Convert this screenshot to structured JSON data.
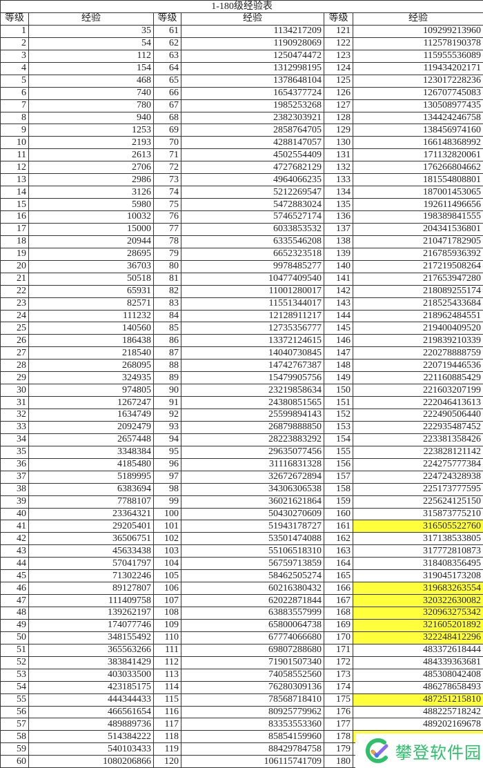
{
  "title": "1-180级经验表",
  "headers": {
    "level": "等级",
    "exp": "经验"
  },
  "highlight_color": "#ffff3c",
  "rows": [
    [
      [
        "1",
        "35"
      ],
      [
        "61",
        "1134217209"
      ],
      [
        "121",
        "109299213960"
      ]
    ],
    [
      [
        "2",
        "54"
      ],
      [
        "62",
        "1190928069"
      ],
      [
        "122",
        "112578190378"
      ]
    ],
    [
      [
        "3",
        "112"
      ],
      [
        "63",
        "1250474472"
      ],
      [
        "123",
        "115955536089"
      ]
    ],
    [
      [
        "4",
        "154"
      ],
      [
        "64",
        "1312998195"
      ],
      [
        "124",
        "119434202171"
      ]
    ],
    [
      [
        "5",
        "468"
      ],
      [
        "65",
        "1378648104"
      ],
      [
        "125",
        "123017228236"
      ]
    ],
    [
      [
        "6",
        "740"
      ],
      [
        "66",
        "1654377724"
      ],
      [
        "126",
        "126707745083"
      ]
    ],
    [
      [
        "7",
        "780"
      ],
      [
        "67",
        "1985253268"
      ],
      [
        "127",
        "130508977435"
      ]
    ],
    [
      [
        "8",
        "940"
      ],
      [
        "68",
        "2382303921"
      ],
      [
        "128",
        "134424246758"
      ]
    ],
    [
      [
        "9",
        "1253"
      ],
      [
        "69",
        "2858764705"
      ],
      [
        "129",
        "138456974160"
      ]
    ],
    [
      [
        "10",
        "2193"
      ],
      [
        "70",
        "4288147057"
      ],
      [
        "130",
        "166148368992"
      ]
    ],
    [
      [
        "11",
        "2613"
      ],
      [
        "71",
        "4502554409"
      ],
      [
        "131",
        "171132820061"
      ]
    ],
    [
      [
        "12",
        "2706"
      ],
      [
        "72",
        "4727682129"
      ],
      [
        "132",
        "176266804662"
      ]
    ],
    [
      [
        "13",
        "2986"
      ],
      [
        "73",
        "4964066235"
      ],
      [
        "133",
        "181554808801"
      ]
    ],
    [
      [
        "14",
        "3126"
      ],
      [
        "74",
        "5212269547"
      ],
      [
        "134",
        "187001453065"
      ]
    ],
    [
      [
        "15",
        "5980"
      ],
      [
        "75",
        "5472883024"
      ],
      [
        "135",
        "192611496656"
      ]
    ],
    [
      [
        "16",
        "10032"
      ],
      [
        "76",
        "5746527174"
      ],
      [
        "136",
        "198389841555"
      ]
    ],
    [
      [
        "17",
        "15000"
      ],
      [
        "77",
        "6033853532"
      ],
      [
        "137",
        "204341536801"
      ]
    ],
    [
      [
        "18",
        "20944"
      ],
      [
        "78",
        "6335546208"
      ],
      [
        "138",
        "210471782905"
      ]
    ],
    [
      [
        "19",
        "28695"
      ],
      [
        "79",
        "6652323518"
      ],
      [
        "139",
        "216785936392"
      ]
    ],
    [
      [
        "20",
        "36703"
      ],
      [
        "80",
        "9978485277"
      ],
      [
        "140",
        "217219508264"
      ]
    ],
    [
      [
        "21",
        "50518"
      ],
      [
        "81",
        "10477409540"
      ],
      [
        "141",
        "217653947280"
      ]
    ],
    [
      [
        "22",
        "65931"
      ],
      [
        "82",
        "11001280017"
      ],
      [
        "142",
        "218089255174"
      ]
    ],
    [
      [
        "23",
        "82571"
      ],
      [
        "83",
        "11551344017"
      ],
      [
        "143",
        "218525433684"
      ]
    ],
    [
      [
        "24",
        "111232"
      ],
      [
        "84",
        "12128911217"
      ],
      [
        "144",
        "218962484551"
      ]
    ],
    [
      [
        "25",
        "140560"
      ],
      [
        "85",
        "12735356777"
      ],
      [
        "145",
        "219400409520"
      ]
    ],
    [
      [
        "26",
        "186438"
      ],
      [
        "86",
        "13372124615"
      ],
      [
        "146",
        "219839210339"
      ]
    ],
    [
      [
        "27",
        "218540"
      ],
      [
        "87",
        "14040730845"
      ],
      [
        "147",
        "220278888759"
      ]
    ],
    [
      [
        "28",
        "268095"
      ],
      [
        "88",
        "14742767387"
      ],
      [
        "148",
        "220719446536"
      ]
    ],
    [
      [
        "29",
        "324935"
      ],
      [
        "89",
        "15479905756"
      ],
      [
        "149",
        "221160885429"
      ]
    ],
    [
      [
        "30",
        "974805"
      ],
      [
        "90",
        "23219858634"
      ],
      [
        "150",
        "221603207199"
      ]
    ],
    [
      [
        "31",
        "1267247"
      ],
      [
        "91",
        "24380851565"
      ],
      [
        "151",
        "222046413613"
      ]
    ],
    [
      [
        "32",
        "1634749"
      ],
      [
        "92",
        "25599894143"
      ],
      [
        "152",
        "222490506440"
      ]
    ],
    [
      [
        "33",
        "2092479"
      ],
      [
        "93",
        "26879888850"
      ],
      [
        "153",
        "222935487452"
      ]
    ],
    [
      [
        "34",
        "2657448"
      ],
      [
        "94",
        "28223883292"
      ],
      [
        "154",
        "223381358426"
      ]
    ],
    [
      [
        "35",
        "3348384"
      ],
      [
        "95",
        "29635077456"
      ],
      [
        "155",
        "223828121142"
      ]
    ],
    [
      [
        "36",
        "4185480"
      ],
      [
        "96",
        "31116831328"
      ],
      [
        "156",
        "224275777384"
      ]
    ],
    [
      [
        "37",
        "5189995"
      ],
      [
        "97",
        "32672672894"
      ],
      [
        "157",
        "224724328938"
      ]
    ],
    [
      [
        "38",
        "6383694"
      ],
      [
        "98",
        "34306306538"
      ],
      [
        "158",
        "225173777595"
      ]
    ],
    [
      [
        "39",
        "7788107"
      ],
      [
        "99",
        "36021621864"
      ],
      [
        "159",
        "225624125150"
      ]
    ],
    [
      [
        "40",
        "23364321"
      ],
      [
        "100",
        "50430270609"
      ],
      [
        "160",
        "315873775210"
      ]
    ],
    [
      [
        "41",
        "29205401"
      ],
      [
        "101",
        "51943178727"
      ],
      [
        "161",
        "316505522760"
      ]
    ],
    [
      [
        "42",
        "36506751"
      ],
      [
        "102",
        "53501474088"
      ],
      [
        "162",
        "317138533805"
      ]
    ],
    [
      [
        "43",
        "45633438"
      ],
      [
        "103",
        "55106518310"
      ],
      [
        "163",
        "317772810873"
      ]
    ],
    [
      [
        "44",
        "57041797"
      ],
      [
        "104",
        "56759713859"
      ],
      [
        "164",
        "318408356495"
      ]
    ],
    [
      [
        "45",
        "71302246"
      ],
      [
        "105",
        "58462505274"
      ],
      [
        "165",
        "319045173208"
      ]
    ],
    [
      [
        "46",
        "89127807"
      ],
      [
        "106",
        "60216380432"
      ],
      [
        "166",
        "319683263554"
      ]
    ],
    [
      [
        "47",
        "111409758"
      ],
      [
        "107",
        "62022871844"
      ],
      [
        "167",
        "320322630082"
      ]
    ],
    [
      [
        "48",
        "139262197"
      ],
      [
        "108",
        "63883557999"
      ],
      [
        "168",
        "320963275342"
      ]
    ],
    [
      [
        "49",
        "174077746"
      ],
      [
        "109",
        "65800064738"
      ],
      [
        "169",
        "321605201892"
      ]
    ],
    [
      [
        "50",
        "348155492"
      ],
      [
        "110",
        "67774066680"
      ],
      [
        "170",
        "322248412296"
      ]
    ],
    [
      [
        "51",
        "365563266"
      ],
      [
        "111",
        "69807288680"
      ],
      [
        "171",
        "483372618444"
      ]
    ],
    [
      [
        "52",
        "383841429"
      ],
      [
        "112",
        "71901507340"
      ],
      [
        "172",
        "484339363681"
      ]
    ],
    [
      [
        "53",
        "403033500"
      ],
      [
        "113",
        "74058552560"
      ],
      [
        "173",
        "485308042408"
      ]
    ],
    [
      [
        "54",
        "423185175"
      ],
      [
        "114",
        "76280309136"
      ],
      [
        "174",
        "486278658493"
      ]
    ],
    [
      [
        "55",
        "444344433"
      ],
      [
        "115",
        "78568718410"
      ],
      [
        "175",
        "487251215810"
      ]
    ],
    [
      [
        "56",
        "466561654"
      ],
      [
        "116",
        "80925779962"
      ],
      [
        "176",
        "488225718242"
      ]
    ],
    [
      [
        "57",
        "489889736"
      ],
      [
        "117",
        "83353553360"
      ],
      [
        "177",
        "489202169678"
      ]
    ],
    [
      [
        "58",
        "514384222"
      ],
      [
        "118",
        "85854159960"
      ],
      [
        "178",
        ""
      ]
    ],
    [
      [
        "59",
        "540103433"
      ],
      [
        "119",
        "88429784758"
      ],
      [
        "179",
        ""
      ]
    ],
    [
      [
        "60",
        "1080206866"
      ],
      [
        "120",
        "106115741709"
      ],
      [
        "180",
        ""
      ]
    ]
  ],
  "highlighted_levels": [
    "161",
    "166",
    "167",
    "168",
    "169",
    "170",
    "175",
    "178"
  ],
  "watermark": {
    "text": "攀登软件园",
    "color": "#2fbf6a"
  }
}
